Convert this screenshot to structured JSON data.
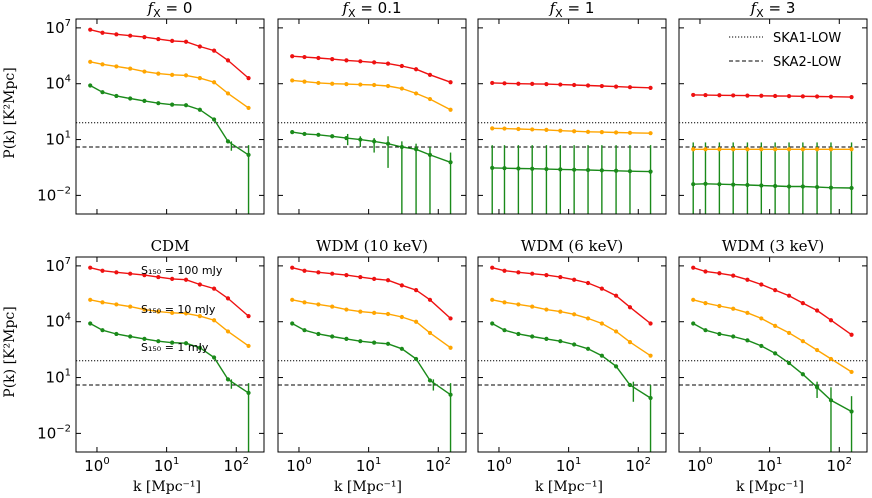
{
  "figure": {
    "ylabel": "P(k) [K²Mpc]",
    "xlabel": "k [Mpc⁻¹]",
    "ref_lines": [
      {
        "name": "SKA1-LOW",
        "style": "dotted",
        "value": 80
      },
      {
        "name": "SKA2-LOW",
        "style": "dashed",
        "value": 4
      }
    ],
    "colors": {
      "high": "#ee1111",
      "mid": "#ffa500",
      "low": "#1a8a1a",
      "axis": "#000000"
    },
    "flux_labels": [
      "S₁₅₀ = 100 mJy",
      "S₁₅₀ = 10 mJy",
      "S₁₅₀ = 1 mJy"
    ]
  },
  "chart_data": [
    {
      "type": "line",
      "title": "f_X = 0",
      "xlim": [
        0.5,
        250
      ],
      "ylim": [
        0.001,
        30000000
      ],
      "xscale": "log",
      "yscale": "log",
      "x": [
        0.8,
        1.2,
        1.9,
        3,
        4.8,
        7.6,
        12,
        19,
        30,
        48,
        76,
        150
      ],
      "series": [
        {
          "name": "S150 = 100 mJy",
          "color": "#ee1111",
          "values": [
            8000000,
            5500000,
            4500000,
            3800000,
            3200000,
            2500000,
            2000000,
            1800000,
            1000000,
            600000,
            180000,
            20000
          ]
        },
        {
          "name": "S150 = 10 mJy",
          "color": "#ffa500",
          "values": [
            150000,
            110000,
            85000,
            65000,
            45000,
            35000,
            30000,
            28000,
            20000,
            12000,
            3000,
            500
          ]
        },
        {
          "name": "S150 = 1 mJy",
          "color": "#1a8a1a",
          "values": [
            8000,
            3500,
            2200,
            1600,
            1200,
            900,
            750,
            700,
            400,
            120,
            8,
            1.5
          ]
        }
      ],
      "errorbars": [
        {
          "x": 150,
          "low": 0.001,
          "high": 5,
          "series": "S150 = 1 mJy"
        },
        {
          "x": 85,
          "low": 2.5,
          "high": 8,
          "series": "S150 = 1 mJy"
        }
      ]
    },
    {
      "type": "line",
      "title": "f_X = 0.1",
      "xlim": [
        0.5,
        250
      ],
      "ylim": [
        0.001,
        30000000
      ],
      "xscale": "log",
      "yscale": "log",
      "x": [
        0.8,
        1.2,
        1.9,
        3,
        4.8,
        7.6,
        12,
        19,
        30,
        48,
        76,
        150
      ],
      "series": [
        {
          "name": "S150 = 100 mJy",
          "color": "#ee1111",
          "values": [
            300000,
            270000,
            240000,
            210000,
            180000,
            160000,
            140000,
            120000,
            90000,
            60000,
            30000,
            12000
          ]
        },
        {
          "name": "S150 = 10 mJy",
          "color": "#ffa500",
          "values": [
            15000,
            13000,
            11000,
            10000,
            9500,
            9000,
            8500,
            7500,
            5500,
            3000,
            1500,
            400
          ]
        },
        {
          "name": "S150 = 1 mJy",
          "color": "#1a8a1a",
          "values": [
            25,
            20,
            18,
            15,
            12,
            10,
            8,
            6,
            4,
            3,
            1.5,
            0.6
          ]
        }
      ],
      "errorbars": [
        {
          "x": 0.8,
          "low": 20,
          "high": 32
        },
        {
          "x": 5,
          "low": 5,
          "high": 20
        },
        {
          "x": 7.6,
          "low": 4,
          "high": 15
        },
        {
          "x": 12,
          "low": 2,
          "high": 12
        },
        {
          "x": 19,
          "low": 0.3,
          "high": 15
        },
        {
          "x": 30,
          "low": 0.001,
          "high": 8
        },
        {
          "x": 48,
          "low": 0.001,
          "high": 6
        },
        {
          "x": 76,
          "low": 0.001,
          "high": 4
        },
        {
          "x": 150,
          "low": 0.001,
          "high": 2
        }
      ]
    },
    {
      "type": "line",
      "title": "f_X = 1",
      "xlim": [
        0.5,
        250
      ],
      "ylim": [
        0.001,
        30000000
      ],
      "xscale": "log",
      "yscale": "log",
      "x": [
        0.8,
        1.2,
        1.9,
        3,
        4.8,
        7.6,
        12,
        19,
        30,
        48,
        76,
        150
      ],
      "series": [
        {
          "name": "S150 = 100 mJy",
          "color": "#ee1111",
          "values": [
            11000,
            10500,
            10000,
            9800,
            9500,
            9000,
            8500,
            8000,
            7500,
            7000,
            6500,
            6000
          ]
        },
        {
          "name": "S150 = 10 mJy",
          "color": "#ffa500",
          "values": [
            40,
            39,
            37,
            35,
            33,
            30,
            28,
            26,
            25,
            24,
            23,
            22
          ]
        },
        {
          "name": "S150 = 1 mJy",
          "color": "#1a8a1a",
          "values": [
            0.3,
            0.29,
            0.28,
            0.27,
            0.26,
            0.25,
            0.24,
            0.23,
            0.22,
            0.21,
            0.2,
            0.19
          ]
        }
      ],
      "errorbars": [
        {
          "x": 0.8,
          "low": 0.001,
          "high": 5
        },
        {
          "x": 1.2,
          "low": 0.001,
          "high": 5
        },
        {
          "x": 1.9,
          "low": 0.001,
          "high": 5
        },
        {
          "x": 3,
          "low": 0.001,
          "high": 5
        },
        {
          "x": 4.8,
          "low": 0.001,
          "high": 5
        },
        {
          "x": 7.6,
          "low": 0.001,
          "high": 5
        },
        {
          "x": 12,
          "low": 0.001,
          "high": 5
        },
        {
          "x": 19,
          "low": 0.001,
          "high": 5
        },
        {
          "x": 30,
          "low": 0.001,
          "high": 5
        },
        {
          "x": 48,
          "low": 0.001,
          "high": 5
        },
        {
          "x": 76,
          "low": 0.001,
          "high": 5
        },
        {
          "x": 150,
          "low": 0.001,
          "high": 5
        }
      ]
    },
    {
      "type": "line",
      "title": "f_X = 3",
      "xlim": [
        0.5,
        250
      ],
      "ylim": [
        0.001,
        30000000
      ],
      "xscale": "log",
      "yscale": "log",
      "x": [
        0.8,
        1.2,
        1.9,
        3,
        4.8,
        7.6,
        12,
        19,
        30,
        48,
        76,
        150
      ],
      "series": [
        {
          "name": "S150 = 100 mJy",
          "color": "#ee1111",
          "values": [
            2500,
            2450,
            2400,
            2350,
            2300,
            2250,
            2200,
            2150,
            2100,
            2050,
            2000,
            1900
          ]
        },
        {
          "name": "S150 = 10 mJy",
          "color": "#ffa500",
          "values": [
            3,
            3,
            3,
            3,
            3,
            3,
            3,
            3,
            3,
            3,
            3,
            3
          ]
        },
        {
          "name": "S150 = 1 mJy",
          "color": "#1a8a1a",
          "values": [
            0.04,
            0.042,
            0.04,
            0.038,
            0.036,
            0.034,
            0.032,
            0.03,
            0.03,
            0.028,
            0.026,
            0.025
          ]
        }
      ],
      "errorbars": [
        {
          "x": 0.8,
          "low": 0.001,
          "high": 7
        },
        {
          "x": 1.2,
          "low": 0.001,
          "high": 7
        },
        {
          "x": 1.9,
          "low": 0.001,
          "high": 7
        },
        {
          "x": 3,
          "low": 0.001,
          "high": 7
        },
        {
          "x": 4.8,
          "low": 0.001,
          "high": 7
        },
        {
          "x": 7.6,
          "low": 0.001,
          "high": 7
        },
        {
          "x": 12,
          "low": 0.001,
          "high": 7
        },
        {
          "x": 19,
          "low": 0.001,
          "high": 7
        },
        {
          "x": 30,
          "low": 0.001,
          "high": 7
        },
        {
          "x": 48,
          "low": 0.001,
          "high": 7
        },
        {
          "x": 76,
          "low": 0.001,
          "high": 7
        },
        {
          "x": 150,
          "low": 0.001,
          "high": 7
        }
      ],
      "legend": {
        "position": "top-right",
        "entries": [
          "SKA1-LOW",
          "SKA2-LOW"
        ]
      }
    },
    {
      "type": "line",
      "title": "CDM",
      "xlim": [
        0.5,
        250
      ],
      "ylim": [
        0.001,
        30000000
      ],
      "xscale": "log",
      "yscale": "log",
      "x": [
        0.8,
        1.2,
        1.9,
        3,
        4.8,
        7.6,
        12,
        19,
        30,
        48,
        76,
        150
      ],
      "series": [
        {
          "name": "S150 = 100 mJy",
          "color": "#ee1111",
          "values": [
            8000000,
            5500000,
            4500000,
            3800000,
            3200000,
            2500000,
            2000000,
            1800000,
            1000000,
            600000,
            180000,
            20000
          ]
        },
        {
          "name": "S150 = 10 mJy",
          "color": "#ffa500",
          "values": [
            150000,
            110000,
            85000,
            65000,
            45000,
            35000,
            30000,
            28000,
            20000,
            12000,
            3000,
            500
          ]
        },
        {
          "name": "S150 = 1 mJy",
          "color": "#1a8a1a",
          "values": [
            8000,
            3500,
            2200,
            1600,
            1200,
            900,
            750,
            700,
            400,
            120,
            8,
            1.5
          ]
        }
      ],
      "errorbars": [
        {
          "x": 150,
          "low": 0.001,
          "high": 5
        },
        {
          "x": 85,
          "low": 2.5,
          "high": 8
        }
      ],
      "annotations": [
        "S₁₅₀ = 100 mJy",
        "S₁₅₀ = 10 mJy",
        "S₁₅₀ = 1 mJy"
      ]
    },
    {
      "type": "line",
      "title": "WDM (10 keV)",
      "xlim": [
        0.5,
        250
      ],
      "ylim": [
        0.001,
        30000000
      ],
      "xscale": "log",
      "yscale": "log",
      "x": [
        0.8,
        1.2,
        1.9,
        3,
        4.8,
        7.6,
        12,
        19,
        30,
        48,
        76,
        150
      ],
      "series": [
        {
          "name": "S150 = 100 mJy",
          "color": "#ee1111",
          "values": [
            8000000,
            5500000,
            4500000,
            3800000,
            3200000,
            2500000,
            2000000,
            1700000,
            900000,
            500000,
            150000,
            15000
          ]
        },
        {
          "name": "S150 = 10 mJy",
          "color": "#ffa500",
          "values": [
            150000,
            110000,
            85000,
            65000,
            45000,
            35000,
            30000,
            26000,
            18000,
            10000,
            2500,
            400
          ]
        },
        {
          "name": "S150 = 1 mJy",
          "color": "#1a8a1a",
          "values": [
            8000,
            3500,
            2200,
            1600,
            1200,
            900,
            750,
            650,
            350,
            100,
            7,
            1.2
          ]
        }
      ],
      "errorbars": [
        {
          "x": 150,
          "low": 0.001,
          "high": 5
        },
        {
          "x": 85,
          "low": 2,
          "high": 8
        }
      ]
    },
    {
      "type": "line",
      "title": "WDM (6 keV)",
      "xlim": [
        0.5,
        250
      ],
      "ylim": [
        0.001,
        30000000
      ],
      "xscale": "log",
      "yscale": "log",
      "x": [
        0.8,
        1.2,
        1.9,
        3,
        4.8,
        7.6,
        12,
        19,
        30,
        48,
        76,
        150
      ],
      "series": [
        {
          "name": "S150 = 100 mJy",
          "color": "#ee1111",
          "values": [
            8000000,
            5500000,
            4500000,
            3800000,
            3200000,
            2500000,
            1800000,
            1200000,
            600000,
            250000,
            60000,
            8000
          ]
        },
        {
          "name": "S150 = 10 mJy",
          "color": "#ffa500",
          "values": [
            150000,
            110000,
            85000,
            65000,
            45000,
            35000,
            25000,
            15000,
            8000,
            3000,
            800,
            150
          ]
        },
        {
          "name": "S150 = 1 mJy",
          "color": "#1a8a1a",
          "values": [
            8000,
            3500,
            2200,
            1600,
            1200,
            900,
            600,
            350,
            150,
            40,
            4,
            0.8
          ]
        }
      ],
      "errorbars": [
        {
          "x": 150,
          "low": 0.001,
          "high": 4
        },
        {
          "x": 85,
          "low": 0.5,
          "high": 6
        }
      ]
    },
    {
      "type": "line",
      "title": "WDM (3 keV)",
      "xlim": [
        0.5,
        250
      ],
      "ylim": [
        0.001,
        30000000
      ],
      "xscale": "log",
      "yscale": "log",
      "x": [
        0.8,
        1.2,
        1.9,
        3,
        4.8,
        7.6,
        12,
        19,
        30,
        48,
        76,
        150
      ],
      "series": [
        {
          "name": "S150 = 100 mJy",
          "color": "#ee1111",
          "values": [
            8000000,
            5000000,
            4000000,
            3000000,
            1800000,
            1000000,
            500000,
            250000,
            100000,
            40000,
            12000,
            2000
          ]
        },
        {
          "name": "S150 = 10 mJy",
          "color": "#ffa500",
          "values": [
            150000,
            100000,
            70000,
            50000,
            30000,
            15000,
            6000,
            2500,
            900,
            300,
            100,
            20
          ]
        },
        {
          "name": "S150 = 1 mJy",
          "color": "#1a8a1a",
          "values": [
            8000,
            3500,
            2200,
            1600,
            1000,
            500,
            200,
            60,
            15,
            3,
            0.6,
            0.15
          ]
        }
      ],
      "errorbars": [
        {
          "x": 48,
          "low": 0.8,
          "high": 6
        },
        {
          "x": 76,
          "low": 0.001,
          "high": 3
        },
        {
          "x": 150,
          "low": 0.001,
          "high": 1
        }
      ]
    }
  ]
}
